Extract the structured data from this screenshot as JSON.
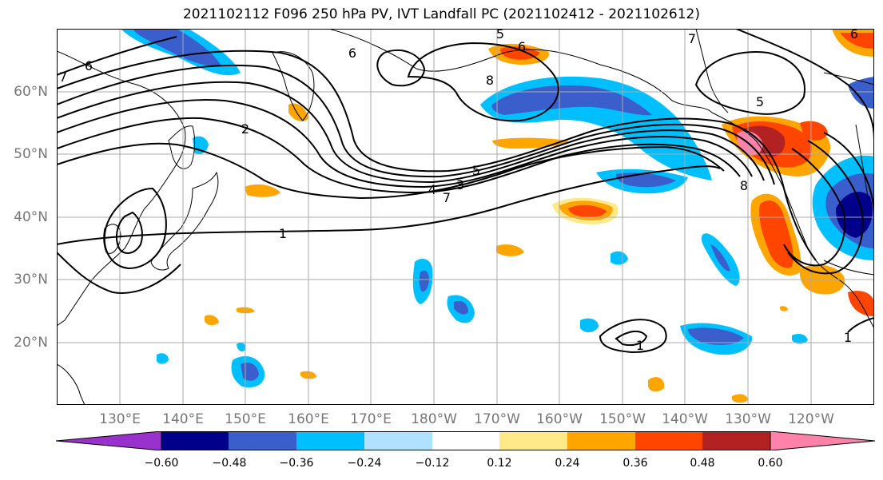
{
  "title": "2021102112 F096 250 hPa PV, IVT Landfall PC (2021102412 - 2021102612)",
  "map": {
    "lat_labels": [
      "60°N",
      "50°N",
      "40°N",
      "30°N",
      "20°N"
    ],
    "lon_labels": [
      "130°E",
      "140°E",
      "150°E",
      "160°E",
      "170°E",
      "180°W",
      "170°W",
      "160°W",
      "150°W",
      "140°W",
      "130°W",
      "120°W"
    ],
    "contour_labels": [
      "6",
      "7",
      "5",
      "6",
      "8",
      "2",
      "4",
      "3",
      "5",
      "7",
      "1",
      "8",
      "5",
      "7",
      "6",
      "1",
      "1",
      "6"
    ],
    "land_color": "#ffffff",
    "grid_color": "#aaaaaa"
  },
  "colorbar": {
    "tick_labels": [
      "−0.60",
      "−0.48",
      "−0.36",
      "−0.24",
      "−0.12",
      "0.12",
      "0.24",
      "0.36",
      "0.48",
      "0.60"
    ],
    "colors": [
      "#9932cc",
      "#00008b",
      "#3a5fcd",
      "#00bfff",
      "#b0e2ff",
      "#ffffff",
      "#ffe989",
      "#ffa500",
      "#ff4500",
      "#b22222",
      "#ff82ab"
    ]
  }
}
